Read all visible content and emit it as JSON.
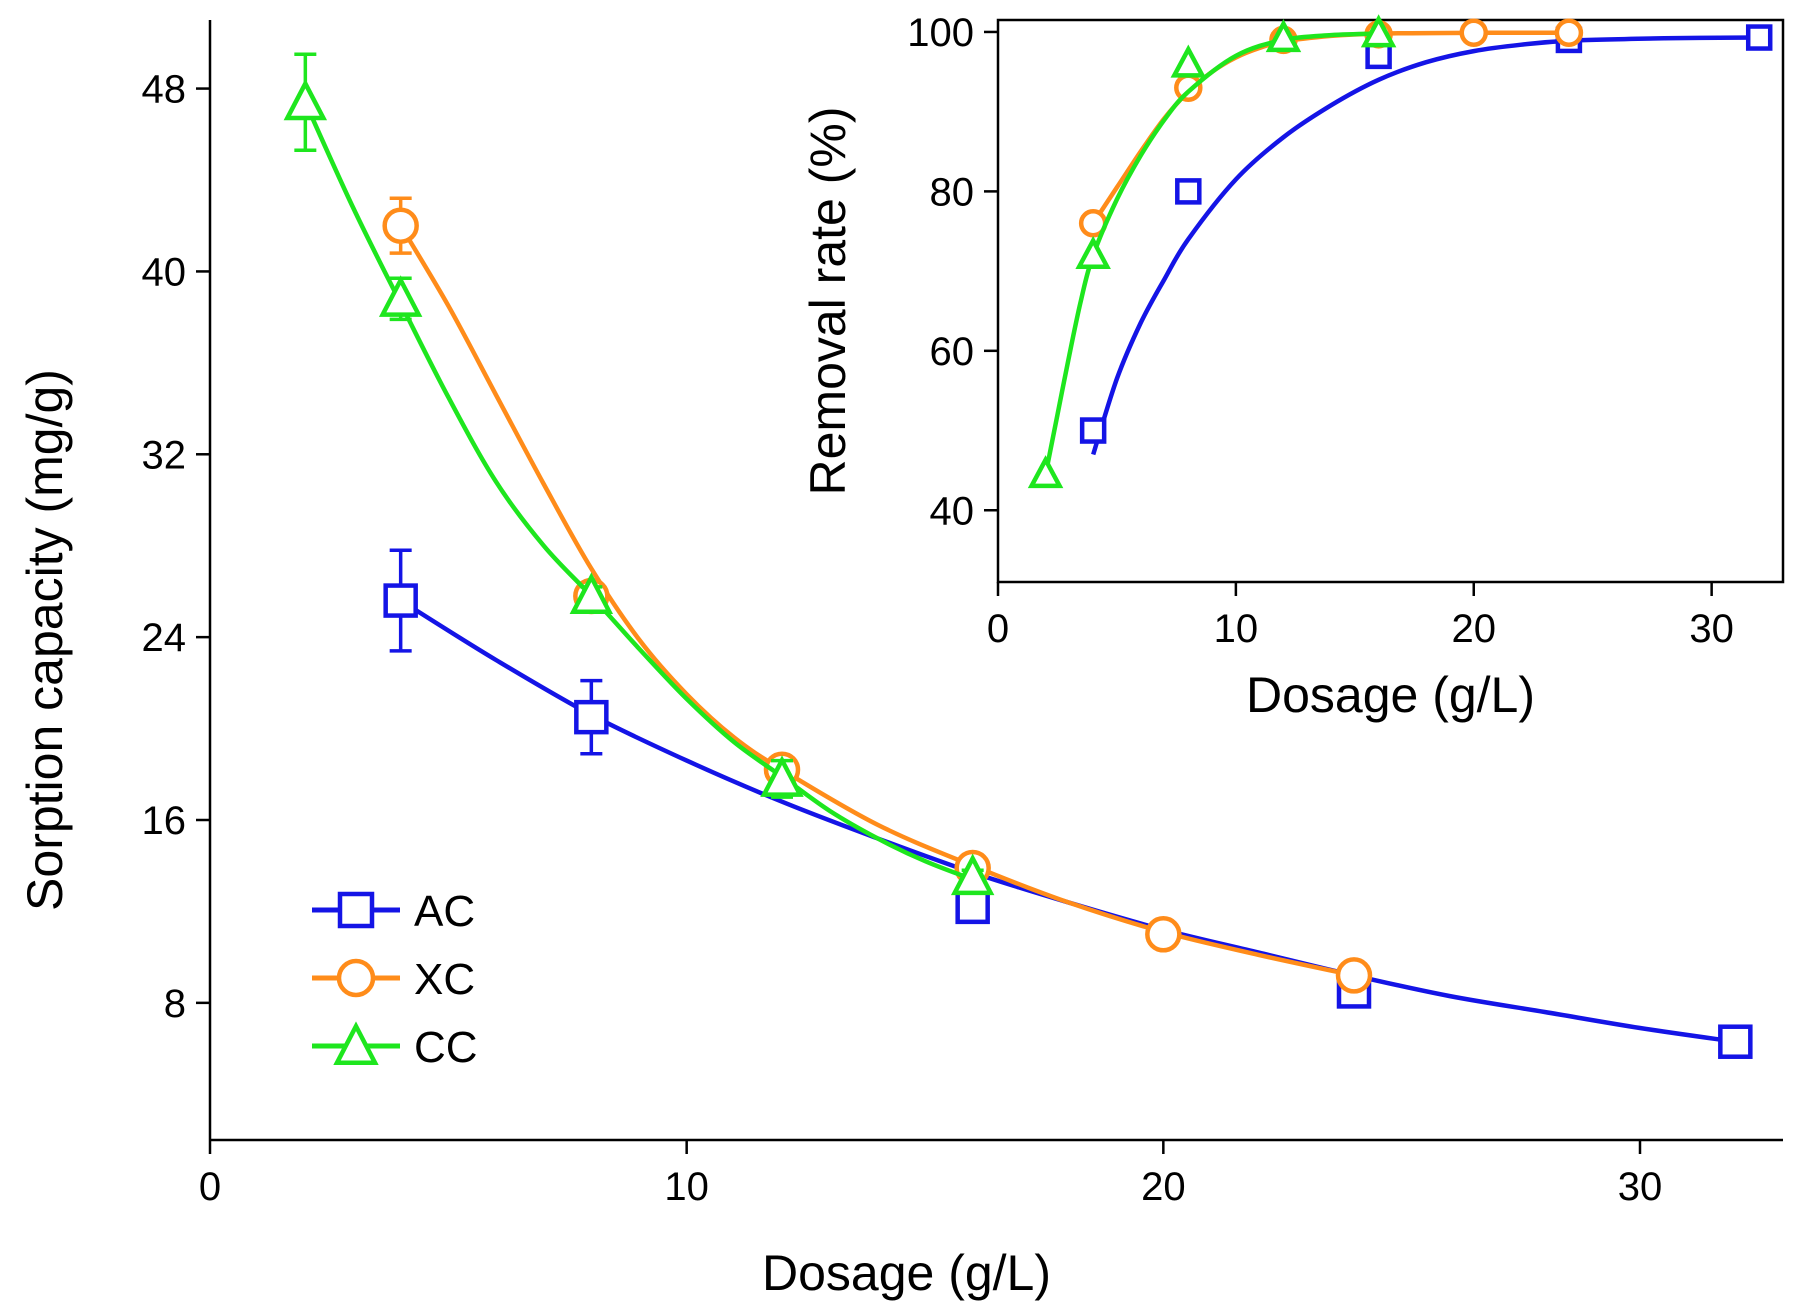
{
  "chart_data": [
    {
      "type": "line",
      "role": "main",
      "xlabel": "Dosage (g/L)",
      "ylabel": "Sorption capacity (mg/g)",
      "xlim": [
        0,
        33
      ],
      "ylim": [
        2,
        51
      ],
      "xticks": [
        0,
        10,
        20,
        30
      ],
      "yticks": [
        8,
        16,
        24,
        32,
        40,
        48
      ],
      "legend": {
        "placement": "lower-left"
      },
      "series": [
        {
          "name": "AC",
          "color": "#1414e6",
          "marker": "square",
          "points": [
            {
              "x": 4,
              "y": 25.6,
              "err": 2.2
            },
            {
              "x": 8,
              "y": 20.5,
              "err": 1.6
            },
            {
              "x": 16,
              "y": 12.2,
              "err": 0.6
            },
            {
              "x": 24,
              "y": 8.5,
              "err": 0.3
            },
            {
              "x": 32,
              "y": 6.3,
              "err": 0.2
            }
          ],
          "curve": [
            [
              4,
              25.6
            ],
            [
              6,
              23.0
            ],
            [
              8,
              20.6
            ],
            [
              10,
              18.6
            ],
            [
              12,
              16.8
            ],
            [
              14,
              15.2
            ],
            [
              16,
              13.7
            ],
            [
              18,
              12.4
            ],
            [
              20,
              11.2
            ],
            [
              22,
              10.2
            ],
            [
              24,
              9.2
            ],
            [
              26,
              8.3
            ],
            [
              28,
              7.6
            ],
            [
              30,
              6.9
            ],
            [
              32,
              6.3
            ]
          ]
        },
        {
          "name": "XC",
          "color": "#ff8c1a",
          "marker": "circle",
          "points": [
            {
              "x": 4,
              "y": 42.0,
              "err": 1.2
            },
            {
              "x": 8,
              "y": 25.8,
              "err": 0.4
            },
            {
              "x": 12,
              "y": 18.2,
              "err": 0.3
            },
            {
              "x": 16,
              "y": 13.9,
              "err": 0.3
            },
            {
              "x": 20,
              "y": 11.0,
              "err": 0.2
            },
            {
              "x": 24,
              "y": 9.2,
              "err": 0.2
            }
          ],
          "curve": [
            [
              4,
              42.0
            ],
            [
              5,
              38.5
            ],
            [
              6,
              34.6
            ],
            [
              7,
              30.7
            ],
            [
              8,
              27.0
            ],
            [
              9,
              23.9
            ],
            [
              10,
              21.5
            ],
            [
              11,
              19.6
            ],
            [
              12,
              18.2
            ],
            [
              14,
              15.8
            ],
            [
              16,
              14.0
            ],
            [
              18,
              12.4
            ],
            [
              20,
              11.1
            ],
            [
              22,
              10.1
            ],
            [
              24,
              9.2
            ]
          ]
        },
        {
          "name": "CC",
          "color": "#1ee61e",
          "marker": "triangle",
          "points": [
            {
              "x": 2,
              "y": 47.4,
              "err": 2.1
            },
            {
              "x": 4,
              "y": 38.8,
              "err": 0.9
            },
            {
              "x": 8,
              "y": 25.8,
              "err": 0.4
            },
            {
              "x": 12,
              "y": 17.8,
              "err": 0.8
            },
            {
              "x": 16,
              "y": 13.5,
              "err": 0.3
            }
          ],
          "curve": [
            [
              2,
              47.4
            ],
            [
              3,
              42.8
            ],
            [
              4,
              38.6
            ],
            [
              5,
              34.5
            ],
            [
              6,
              30.8
            ],
            [
              7,
              28.0
            ],
            [
              8,
              25.8
            ],
            [
              9,
              23.5
            ],
            [
              10,
              21.3
            ],
            [
              11,
              19.4
            ],
            [
              12,
              17.9
            ],
            [
              13,
              16.4
            ],
            [
              14,
              15.2
            ],
            [
              15,
              14.2
            ],
            [
              16,
              13.4
            ]
          ]
        }
      ]
    },
    {
      "type": "line",
      "role": "inset",
      "xlabel": "Dosage (g/L)",
      "ylabel": "Removal rate (%)",
      "xlim": [
        0,
        33
      ],
      "ylim": [
        31,
        101.5
      ],
      "xticks": [
        0,
        10,
        20,
        30
      ],
      "yticks": [
        40,
        60,
        80,
        100
      ],
      "series": [
        {
          "name": "AC",
          "color": "#1414e6",
          "marker": "square",
          "points": [
            {
              "x": 4,
              "y": 50.0
            },
            {
              "x": 8,
              "y": 80.0
            },
            {
              "x": 16,
              "y": 97.0
            },
            {
              "x": 24,
              "y": 99.0
            },
            {
              "x": 32,
              "y": 99.3
            }
          ],
          "curve": [
            [
              4,
              47.0
            ],
            [
              5,
              56.5
            ],
            [
              6,
              63.5
            ],
            [
              7,
              69.0
            ],
            [
              8,
              74.0
            ],
            [
              10,
              81.5
            ],
            [
              12,
              86.8
            ],
            [
              14,
              90.8
            ],
            [
              16,
              94.0
            ],
            [
              18,
              96.2
            ],
            [
              20,
              97.6
            ],
            [
              22,
              98.4
            ],
            [
              24,
              98.9
            ],
            [
              28,
              99.2
            ],
            [
              32,
              99.3
            ]
          ]
        },
        {
          "name": "XC",
          "color": "#ff8c1a",
          "marker": "circle",
          "points": [
            {
              "x": 4,
              "y": 76.0
            },
            {
              "x": 8,
              "y": 93.0
            },
            {
              "x": 12,
              "y": 99.0
            },
            {
              "x": 16,
              "y": 99.7
            },
            {
              "x": 20,
              "y": 99.9
            },
            {
              "x": 24,
              "y": 99.9
            }
          ],
          "curve": [
            [
              4,
              76.0
            ],
            [
              5,
              80.5
            ],
            [
              6,
              85.0
            ],
            [
              7,
              89.2
            ],
            [
              8,
              92.5
            ],
            [
              9,
              95.0
            ],
            [
              10,
              96.8
            ],
            [
              11,
              98.0
            ],
            [
              12,
              98.8
            ],
            [
              14,
              99.5
            ],
            [
              16,
              99.8
            ],
            [
              20,
              99.9
            ],
            [
              24,
              99.9
            ]
          ]
        },
        {
          "name": "CC",
          "color": "#1ee61e",
          "marker": "triangle",
          "points": [
            {
              "x": 2,
              "y": 44.5
            },
            {
              "x": 4,
              "y": 72.0
            },
            {
              "x": 8,
              "y": 96.0
            },
            {
              "x": 12,
              "y": 99.2
            },
            {
              "x": 16,
              "y": 99.8
            }
          ],
          "curve": [
            [
              2,
              44.5
            ],
            [
              2.5,
              52.0
            ],
            [
              3,
              59.5
            ],
            [
              3.5,
              66.5
            ],
            [
              4,
              72.0
            ],
            [
              5,
              79.0
            ],
            [
              6,
              84.5
            ],
            [
              7,
              89.0
            ],
            [
              8,
              92.5
            ],
            [
              10,
              97.0
            ],
            [
              12,
              99.0
            ],
            [
              14,
              99.6
            ],
            [
              16,
              99.8
            ]
          ]
        }
      ]
    }
  ]
}
